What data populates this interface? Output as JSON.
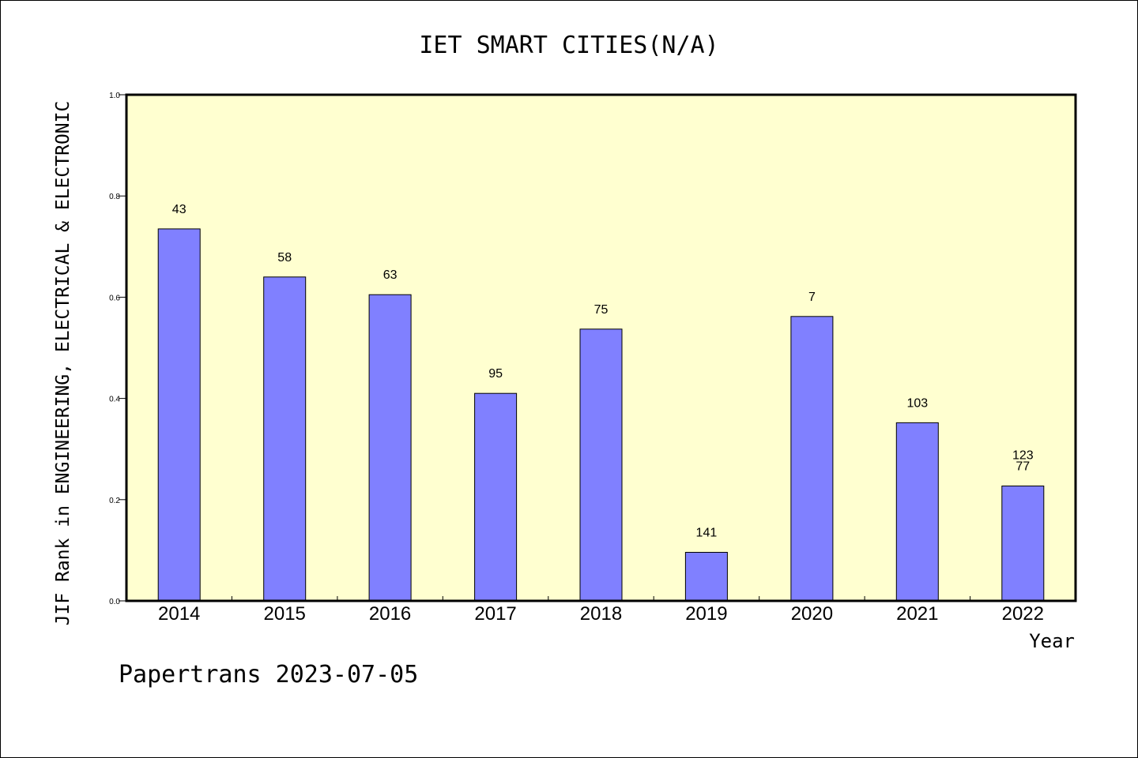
{
  "chart_data": {
    "type": "bar",
    "title": "IET SMART CITIES(N/A)",
    "ylabel": "JIF Rank in ENGINEERING, ELECTRICAL & ELECTRONIC",
    "xlabel": "Year",
    "ylim": [
      0,
      1.0
    ],
    "yticks": [
      "0.0",
      "0.2",
      "0.4",
      "0.6",
      "0.8",
      "1.0"
    ],
    "categories": [
      "2014",
      "2015",
      "2016",
      "2017",
      "2018",
      "2019",
      "2020",
      "2021",
      "2022"
    ],
    "values": [
      0.735,
      0.64,
      0.605,
      0.41,
      0.537,
      0.096,
      0.562,
      0.352,
      0.227
    ],
    "bar_labels": [
      [
        "43"
      ],
      [
        "58"
      ],
      [
        "63"
      ],
      [
        "95"
      ],
      [
        "75"
      ],
      [
        "141"
      ],
      [
        "7"
      ],
      [
        "103"
      ],
      [
        "123",
        "77"
      ]
    ],
    "bar_color": "#8080ff",
    "plot_background": "#ffffd0",
    "grid": false
  },
  "footer": {
    "text": "Papertrans 2023-07-05"
  }
}
